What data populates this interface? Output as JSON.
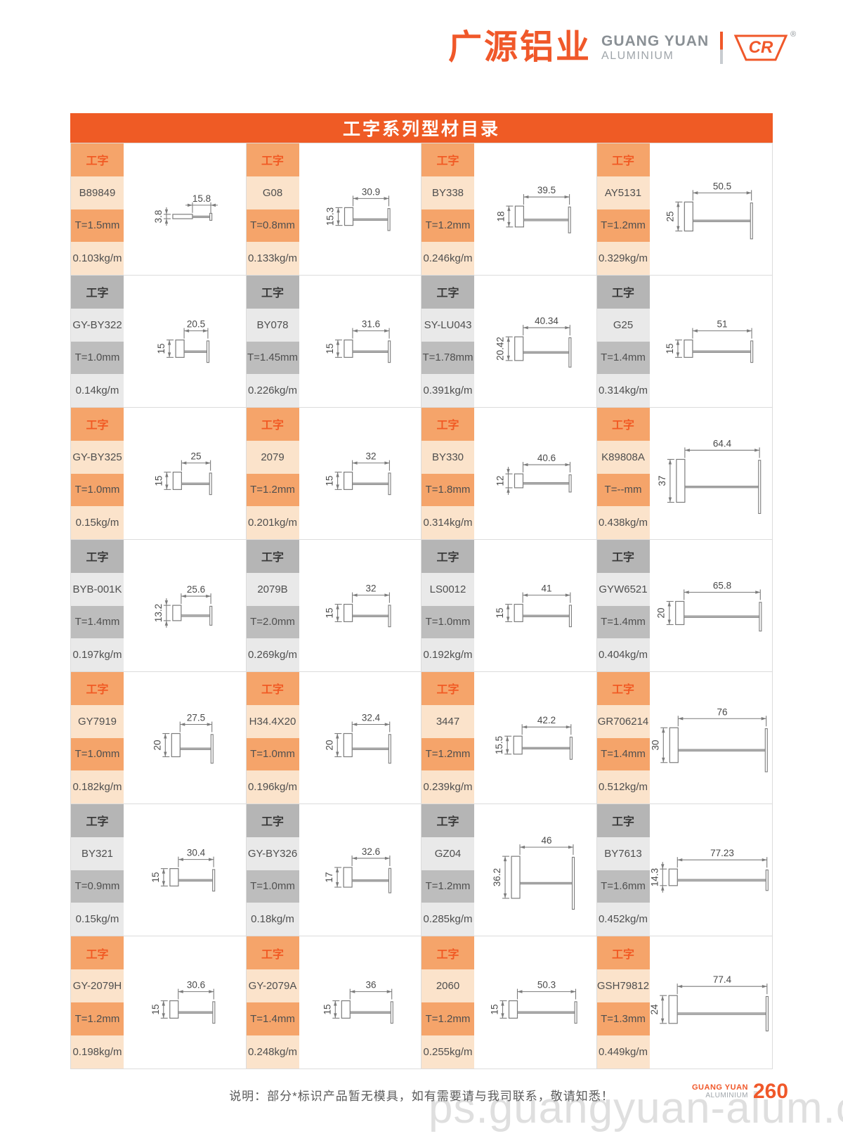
{
  "header": {
    "logo_cn": "广源铝业",
    "logo_en_line1": "GUANG YUAN",
    "logo_en_line2": "ALUMINIUM",
    "logo_mark": "CR",
    "registered": "®"
  },
  "title": {
    "text": "工字系列型材目录"
  },
  "series_tag": "工字",
  "products": [
    {
      "code": "B89849",
      "t": "T=1.5mm",
      "kg": "0.103kg/m",
      "w": "15.8",
      "h": "3.8",
      "theme": "orange"
    },
    {
      "code": "G08",
      "t": "T=0.8mm",
      "kg": "0.133kg/m",
      "w": "30.9",
      "h": "15.3",
      "theme": "orange"
    },
    {
      "code": "BY338",
      "t": "T=1.2mm",
      "kg": "0.246kg/m",
      "w": "39.5",
      "h": "18",
      "theme": "orange"
    },
    {
      "code": "AY5131",
      "t": "T=1.2mm",
      "kg": "0.329kg/m",
      "w": "50.5",
      "h": "25",
      "theme": "orange"
    },
    {
      "code": "GY-BY322",
      "t": "T=1.0mm",
      "kg": "0.14kg/m",
      "w": "20.5",
      "h": "15",
      "theme": "gray"
    },
    {
      "code": "BY078",
      "t": "T=1.45mm",
      "kg": "0.226kg/m",
      "w": "31.6",
      "h": "15",
      "theme": "gray"
    },
    {
      "code": "SY-LU043",
      "t": "T=1.78mm",
      "kg": "0.391kg/m",
      "w": "40.34",
      "h": "20.42",
      "theme": "gray"
    },
    {
      "code": "G25",
      "t": "T=1.4mm",
      "kg": "0.314kg/m",
      "w": "51",
      "h": "15",
      "theme": "gray"
    },
    {
      "code": "GY-BY325",
      "t": "T=1.0mm",
      "kg": "0.15kg/m",
      "w": "25",
      "h": "15",
      "theme": "orange"
    },
    {
      "code": "2079",
      "t": "T=1.2mm",
      "kg": "0.201kg/m",
      "w": "32",
      "h": "15",
      "theme": "orange"
    },
    {
      "code": "BY330",
      "t": "T=1.8mm",
      "kg": "0.314kg/m",
      "w": "40.6",
      "h": "12",
      "theme": "orange"
    },
    {
      "code": "K89808A",
      "t": "T=--mm",
      "kg": "0.438kg/m",
      "w": "64.4",
      "h": "37",
      "theme": "orange"
    },
    {
      "code": "BYB-001K",
      "t": "T=1.4mm",
      "kg": "0.197kg/m",
      "w": "25.6",
      "h": "13.2",
      "theme": "gray"
    },
    {
      "code": "2079B",
      "t": "T=2.0mm",
      "kg": "0.269kg/m",
      "w": "32",
      "h": "15",
      "theme": "gray"
    },
    {
      "code": "LS0012",
      "t": "T=1.0mm",
      "kg": "0.192kg/m",
      "w": "41",
      "h": "15",
      "theme": "gray"
    },
    {
      "code": "GYW6521",
      "t": "T=1.4mm",
      "kg": "0.404kg/m",
      "w": "65.8",
      "h": "20",
      "theme": "gray"
    },
    {
      "code": "GY7919",
      "t": "T=1.0mm",
      "kg": "0.182kg/m",
      "w": "27.5",
      "h": "20",
      "theme": "orange"
    },
    {
      "code": "H34.4X20",
      "t": "T=1.0mm",
      "kg": "0.196kg/m",
      "w": "32.4",
      "h": "20",
      "theme": "orange"
    },
    {
      "code": "3447",
      "t": "T=1.2mm",
      "kg": "0.239kg/m",
      "w": "42.2",
      "h": "15.5",
      "theme": "orange"
    },
    {
      "code": "GR706214",
      "t": "T=1.4mm",
      "kg": "0.512kg/m",
      "w": "76",
      "h": "30",
      "theme": "orange"
    },
    {
      "code": "BY321",
      "t": "T=0.9mm",
      "kg": "0.15kg/m",
      "w": "30.4",
      "h": "15",
      "theme": "gray"
    },
    {
      "code": "GY-BY326",
      "t": "T=1.0mm",
      "kg": "0.18kg/m",
      "w": "32.6",
      "h": "17",
      "theme": "gray"
    },
    {
      "code": "GZ04",
      "t": "T=1.2mm",
      "kg": "0.285kg/m",
      "w": "46",
      "h": "36.2",
      "theme": "gray"
    },
    {
      "code": "BY7613",
      "t": "T=1.6mm",
      "kg": "0.452kg/m",
      "w": "77.23",
      "h": "14.3",
      "theme": "gray"
    },
    {
      "code": "GY-2079H",
      "t": "T=1.2mm",
      "kg": "0.198kg/m",
      "w": "30.6",
      "h": "15",
      "theme": "orange"
    },
    {
      "code": "GY-2079A",
      "t": "T=1.4mm",
      "kg": "0.248kg/m",
      "w": "36",
      "h": "15",
      "theme": "orange"
    },
    {
      "code": "2060",
      "t": "T=1.2mm",
      "kg": "0.255kg/m",
      "w": "50.3",
      "h": "15",
      "theme": "orange"
    },
    {
      "code": "GSH79812",
      "t": "T=1.3mm",
      "kg": "0.449kg/m",
      "w": "77.4",
      "h": "24",
      "theme": "orange"
    }
  ],
  "footer": {
    "note": "说明：部分*标识产品暂无模具，如有需要请与我司联系，敬请知悉！",
    "brand_line1": "GUANG YUAN",
    "brand_line2": "ALUMINIUM",
    "page_number": "260",
    "watermark": "ps.guangyuan-alum.com"
  },
  "colors": {
    "accent_orange": "#F0582A",
    "tag_text_orange": "#F15A24",
    "band_orange_dark": "#F5A46A",
    "band_orange_light": "#FBE3CB",
    "band_gray_dark": "#B5B5B5",
    "band_gray_light": "#E9E9E9",
    "title_bar": "#EF5B25",
    "drawing_line": "#7C7C7C",
    "watermark_gray": "#DADADA"
  }
}
